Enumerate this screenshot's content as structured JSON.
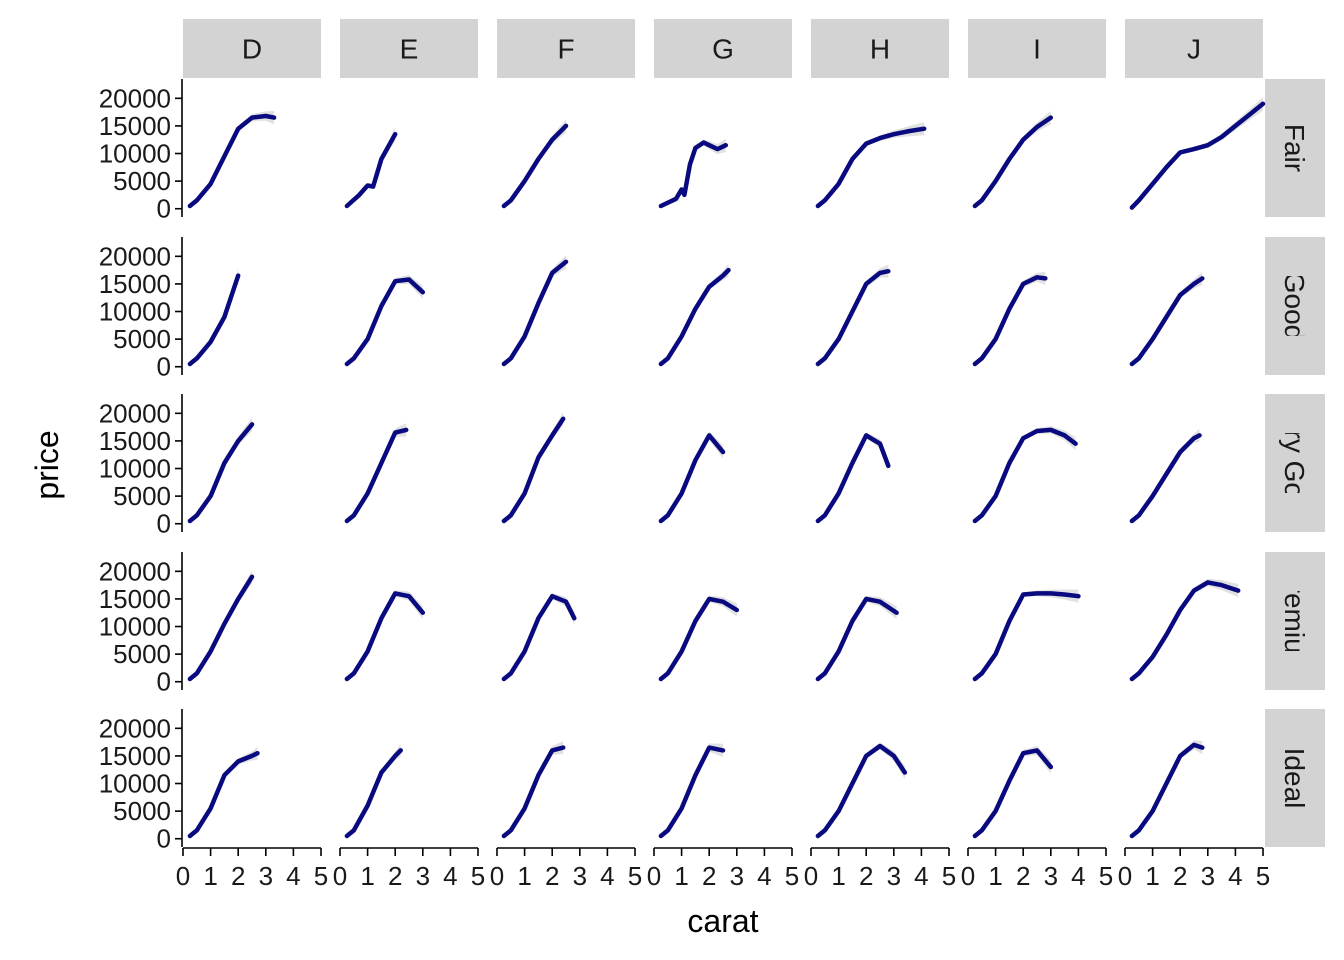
{
  "chart_data": {
    "type": "line",
    "facet": "grid",
    "xlabel": "carat",
    "ylabel": "price",
    "xlim": [
      0,
      5
    ],
    "ylim": [
      -1500,
      23500
    ],
    "x_ticks": [
      0,
      1,
      2,
      3,
      4,
      5
    ],
    "y_ticks": [
      0,
      5000,
      10000,
      15000,
      20000
    ],
    "col_labels": [
      "D",
      "E",
      "F",
      "G",
      "H",
      "I",
      "J"
    ],
    "row_labels": [
      "Fair",
      "Good",
      "Very Good",
      "Premium",
      "Ideal"
    ],
    "colors": {
      "line": "#0a0a80",
      "band": "#bdbdbd",
      "strip": "#d3d3d3"
    },
    "panels": [
      [
        {
          "x": [
            0.25,
            0.5,
            1,
            1.5,
            2,
            2.5,
            3,
            3.3
          ],
          "y": [
            500,
            1500,
            4500,
            9500,
            14500,
            16500,
            16800,
            16500
          ]
        },
        {
          "x": [
            0.25,
            0.7,
            1,
            1.2,
            1.5,
            2
          ],
          "y": [
            500,
            2500,
            4200,
            4000,
            9000,
            13500
          ]
        },
        {
          "x": [
            0.25,
            0.5,
            1,
            1.5,
            2,
            2.5
          ],
          "y": [
            500,
            1500,
            5000,
            9000,
            12500,
            15000
          ]
        },
        {
          "x": [
            0.25,
            0.8,
            1,
            1.1,
            1.3,
            1.5,
            1.8,
            2,
            2.3,
            2.6
          ],
          "y": [
            500,
            1800,
            3500,
            2500,
            8000,
            11000,
            12000,
            11500,
            10800,
            11500
          ]
        },
        {
          "x": [
            0.25,
            0.5,
            1,
            1.5,
            2,
            2.5,
            3,
            3.5,
            4.1
          ],
          "y": [
            500,
            1500,
            4500,
            9000,
            11800,
            12800,
            13500,
            14000,
            14500
          ]
        },
        {
          "x": [
            0.25,
            0.5,
            1,
            1.5,
            2,
            2.5,
            3
          ],
          "y": [
            500,
            1500,
            5000,
            9000,
            12500,
            14800,
            16500
          ]
        },
        {
          "x": [
            0.25,
            0.5,
            1,
            1.5,
            2,
            2.5,
            3,
            3.5,
            4,
            4.5,
            5
          ],
          "y": [
            200,
            1500,
            4500,
            7500,
            10200,
            10800,
            11500,
            13000,
            15000,
            17000,
            19000
          ]
        }
      ],
      [
        {
          "x": [
            0.25,
            0.5,
            1,
            1.5,
            2
          ],
          "y": [
            500,
            1500,
            4500,
            9000,
            16500
          ]
        },
        {
          "x": [
            0.25,
            0.5,
            1,
            1.5,
            2,
            2.5,
            3
          ],
          "y": [
            500,
            1500,
            5000,
            11000,
            15500,
            15800,
            13500
          ]
        },
        {
          "x": [
            0.25,
            0.5,
            1,
            1.5,
            2,
            2.5
          ],
          "y": [
            500,
            1500,
            5500,
            11500,
            17000,
            19000
          ]
        },
        {
          "x": [
            0.25,
            0.5,
            1,
            1.5,
            2,
            2.5,
            2.7
          ],
          "y": [
            500,
            1500,
            5500,
            10500,
            14500,
            16500,
            17500
          ]
        },
        {
          "x": [
            0.25,
            0.5,
            1,
            1.5,
            2,
            2.5,
            2.8
          ],
          "y": [
            500,
            1500,
            5000,
            10000,
            15000,
            17000,
            17300
          ]
        },
        {
          "x": [
            0.25,
            0.5,
            1,
            1.5,
            2,
            2.5,
            2.8
          ],
          "y": [
            500,
            1500,
            5000,
            10500,
            15000,
            16200,
            16000
          ]
        },
        {
          "x": [
            0.25,
            0.5,
            1,
            1.5,
            2,
            2.5,
            2.8
          ],
          "y": [
            500,
            1500,
            5000,
            9000,
            13000,
            15000,
            16000
          ]
        }
      ],
      [
        {
          "x": [
            0.25,
            0.5,
            1,
            1.5,
            2,
            2.5
          ],
          "y": [
            500,
            1500,
            5000,
            11000,
            15000,
            18000
          ]
        },
        {
          "x": [
            0.25,
            0.5,
            1,
            1.5,
            2,
            2.4
          ],
          "y": [
            500,
            1500,
            5500,
            11000,
            16500,
            17000
          ]
        },
        {
          "x": [
            0.25,
            0.5,
            1,
            1.5,
            2,
            2.4
          ],
          "y": [
            500,
            1500,
            5500,
            12000,
            16000,
            19000
          ]
        },
        {
          "x": [
            0.25,
            0.5,
            1,
            1.5,
            2,
            2.5
          ],
          "y": [
            500,
            1500,
            5500,
            11500,
            16000,
            13000
          ]
        },
        {
          "x": [
            0.25,
            0.5,
            1,
            1.5,
            2,
            2.5,
            2.8
          ],
          "y": [
            500,
            1500,
            5500,
            11000,
            16000,
            14500,
            10500
          ]
        },
        {
          "x": [
            0.25,
            0.5,
            1,
            1.5,
            2,
            2.5,
            3,
            3.5,
            3.9
          ],
          "y": [
            500,
            1500,
            5000,
            11000,
            15500,
            16800,
            17000,
            16000,
            14500
          ]
        },
        {
          "x": [
            0.25,
            0.5,
            1,
            1.5,
            2,
            2.5,
            2.7
          ],
          "y": [
            500,
            1500,
            5000,
            9000,
            13000,
            15500,
            16000
          ]
        }
      ],
      [
        {
          "x": [
            0.25,
            0.5,
            1,
            1.5,
            2,
            2.5
          ],
          "y": [
            500,
            1500,
            5500,
            10500,
            15000,
            19000
          ]
        },
        {
          "x": [
            0.25,
            0.5,
            1,
            1.5,
            2,
            2.5,
            3
          ],
          "y": [
            500,
            1500,
            5500,
            11500,
            16000,
            15500,
            12500
          ]
        },
        {
          "x": [
            0.25,
            0.5,
            1,
            1.5,
            2,
            2.5,
            2.8
          ],
          "y": [
            500,
            1500,
            5500,
            11500,
            15500,
            14500,
            11500
          ]
        },
        {
          "x": [
            0.25,
            0.5,
            1,
            1.5,
            2,
            2.5,
            3
          ],
          "y": [
            500,
            1500,
            5500,
            11000,
            15000,
            14500,
            13000
          ]
        },
        {
          "x": [
            0.25,
            0.5,
            1,
            1.5,
            2,
            2.5,
            3.1
          ],
          "y": [
            500,
            1500,
            5500,
            11000,
            15000,
            14500,
            12500
          ]
        },
        {
          "x": [
            0.25,
            0.5,
            1,
            1.5,
            2,
            2.5,
            3,
            3.5,
            4
          ],
          "y": [
            500,
            1500,
            5000,
            11000,
            15800,
            16000,
            16000,
            15800,
            15500
          ]
        },
        {
          "x": [
            0.25,
            0.5,
            1,
            1.5,
            2,
            2.5,
            3,
            3.5,
            4.1
          ],
          "y": [
            500,
            1500,
            4500,
            8500,
            13000,
            16500,
            18000,
            17500,
            16500
          ]
        }
      ],
      [
        {
          "x": [
            0.25,
            0.5,
            1,
            1.5,
            2,
            2.5,
            2.7
          ],
          "y": [
            500,
            1500,
            5500,
            11500,
            14000,
            15000,
            15500
          ]
        },
        {
          "x": [
            0.25,
            0.5,
            1,
            1.5,
            2,
            2.2
          ],
          "y": [
            500,
            1500,
            6000,
            12000,
            15000,
            16000
          ]
        },
        {
          "x": [
            0.25,
            0.5,
            1,
            1.5,
            2,
            2.4
          ],
          "y": [
            500,
            1500,
            5500,
            11500,
            16000,
            16500
          ]
        },
        {
          "x": [
            0.25,
            0.5,
            1,
            1.5,
            2,
            2.5
          ],
          "y": [
            500,
            1500,
            5500,
            11500,
            16500,
            16000
          ]
        },
        {
          "x": [
            0.25,
            0.5,
            1,
            1.5,
            2,
            2.5,
            3,
            3.4
          ],
          "y": [
            500,
            1500,
            5000,
            10000,
            15000,
            16800,
            15000,
            12000
          ]
        },
        {
          "x": [
            0.25,
            0.5,
            1,
            1.5,
            2,
            2.5,
            3
          ],
          "y": [
            500,
            1500,
            5000,
            10500,
            15500,
            16000,
            13000
          ]
        },
        {
          "x": [
            0.25,
            0.5,
            1,
            1.5,
            2,
            2.5,
            2.8
          ],
          "y": [
            500,
            1500,
            5000,
            10000,
            15000,
            17000,
            16500
          ]
        }
      ]
    ]
  }
}
